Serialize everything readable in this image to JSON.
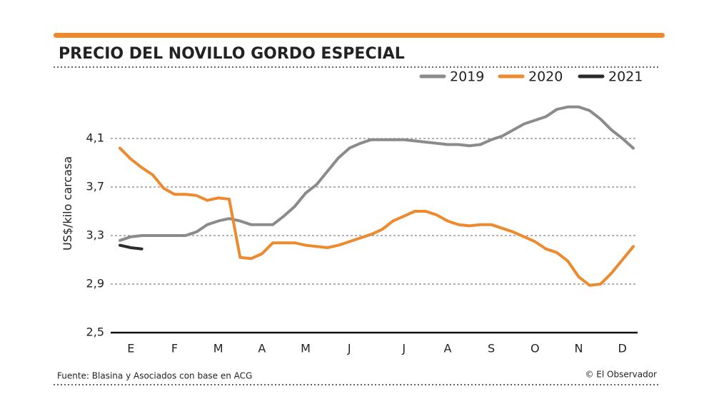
{
  "chart_data": {
    "type": "line",
    "title": "PRECIO DEL NOVILLO GORDO ESPECIAL",
    "y_label": "US$/kilo carcasa",
    "source": "Fuente: Blasina y Asociados con base en ACG",
    "credit": "© El Observador",
    "categories": [
      null,
      "E",
      null,
      null,
      null,
      "F",
      null,
      null,
      null,
      "M",
      null,
      null,
      null,
      "A",
      null,
      null,
      null,
      "M",
      null,
      null,
      null,
      "J",
      null,
      null,
      null,
      null,
      "J",
      null,
      null,
      null,
      "A",
      null,
      null,
      null,
      "S",
      null,
      null,
      null,
      "O",
      null,
      null,
      null,
      "N",
      null,
      null,
      null,
      "D",
      null
    ],
    "ylim": [
      2.5,
      4.4
    ],
    "yticks": [
      {
        "value": 2.5,
        "label": "2,5"
      },
      {
        "value": 2.9,
        "label": "2,9"
      },
      {
        "value": 3.3,
        "label": "3,3"
      },
      {
        "value": 3.7,
        "label": "3,7"
      },
      {
        "value": 4.1,
        "label": "4,1"
      }
    ],
    "grid": true,
    "legend": "top-right",
    "series": [
      {
        "name": "2019",
        "color": "#8c8b8b",
        "values": [
          3.26,
          3.29,
          3.3,
          3.3,
          3.3,
          3.3,
          3.3,
          3.33,
          3.39,
          3.42,
          3.44,
          3.42,
          3.39,
          3.39,
          3.39,
          3.46,
          3.54,
          3.65,
          3.72,
          3.83,
          3.94,
          4.02,
          4.06,
          4.09,
          4.09,
          4.09,
          4.09,
          4.08,
          4.07,
          4.06,
          4.05,
          4.05,
          4.04,
          4.05,
          4.09,
          4.12,
          4.17,
          4.22,
          4.25,
          4.28,
          4.34,
          4.36,
          4.36,
          4.33,
          4.26,
          4.17,
          4.1,
          4.02
        ]
      },
      {
        "name": "2020",
        "color": "#ec8a2d",
        "values": [
          4.02,
          3.93,
          3.86,
          3.8,
          3.69,
          3.64,
          3.64,
          3.63,
          3.59,
          3.61,
          3.6,
          3.12,
          3.11,
          3.15,
          3.24,
          3.24,
          3.24,
          3.22,
          3.21,
          3.2,
          3.22,
          3.25,
          3.28,
          3.31,
          3.35,
          3.42,
          3.46,
          3.5,
          3.5,
          3.47,
          3.42,
          3.39,
          3.38,
          3.39,
          3.39,
          3.36,
          3.33,
          3.29,
          3.25,
          3.19,
          3.16,
          3.09,
          2.96,
          2.89,
          2.9,
          2.99,
          3.1,
          3.21
        ]
      },
      {
        "name": "2021",
        "color": "#2b2b2b",
        "values": [
          3.22,
          3.2,
          3.19,
          null,
          null,
          null,
          null,
          null,
          null,
          null,
          null,
          null,
          null,
          null,
          null,
          null,
          null,
          null,
          null,
          null,
          null,
          null,
          null,
          null,
          null,
          null,
          null,
          null,
          null,
          null,
          null,
          null,
          null,
          null,
          null,
          null,
          null,
          null,
          null,
          null,
          null,
          null,
          null,
          null,
          null,
          null,
          null,
          null
        ]
      }
    ]
  }
}
